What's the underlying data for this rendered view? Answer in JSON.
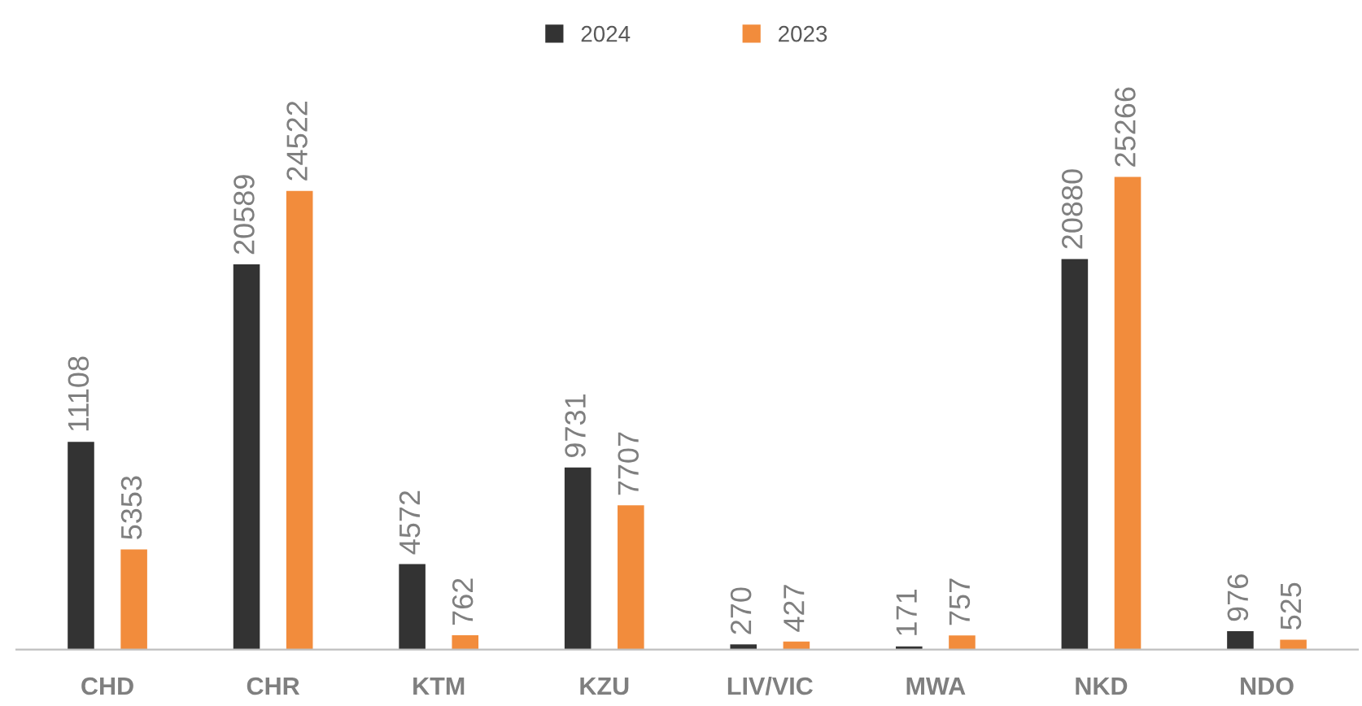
{
  "chart_data": {
    "type": "bar",
    "categories": [
      "CHD",
      "CHR",
      "KTM",
      "KZU",
      "LIV/VIC",
      "MWA",
      "NKD",
      "NDO"
    ],
    "series": [
      {
        "name": "2024",
        "color": "#333333",
        "values": [
          11108,
          20589,
          4572,
          9731,
          270,
          171,
          20880,
          976
        ]
      },
      {
        "name": "2023",
        "color": "#f28c3c",
        "values": [
          5353,
          24522,
          762,
          7707,
          427,
          757,
          25266,
          525
        ]
      }
    ],
    "data_labels": true,
    "legend": "top",
    "grid": false
  }
}
